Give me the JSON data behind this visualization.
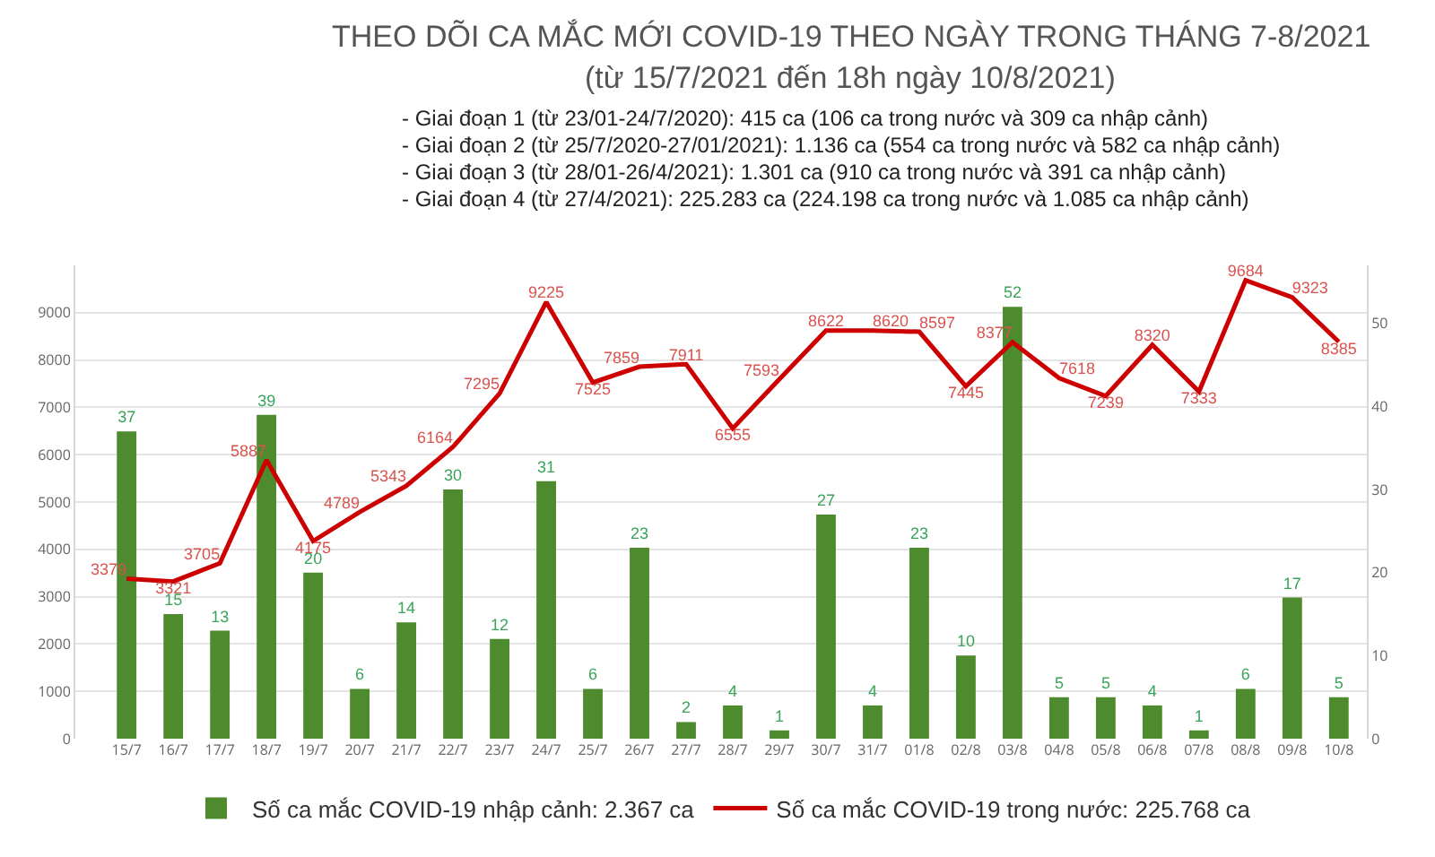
{
  "chart_data": {
    "type": "bar",
    "title": "THEO DÕI CA MẮC MỚI COVID-19 THEO NGÀY TRONG THÁNG 7-8/2021",
    "subtitle": "(từ 15/7/2021 đến 18h ngày 10/8/2021)",
    "annotations": [
      "- Giai đoạn 1 (từ 23/01-24/7/2020): 415 ca (106 ca trong nước và 309 ca nhập cảnh)",
      "- Giai đoạn 2 (từ 25/7/2020-27/01/2021): 1.136 ca (554 ca trong nước và 582 ca nhập cảnh)",
      "- Giai đoạn 3 (từ 28/01-26/4/2021): 1.301 ca (910 ca trong nước và 391 ca nhập cảnh)",
      "- Giai đoạn 4 (từ 27/4/2021): 225.283 ca (224.198 ca trong nước và 1.085 ca nhập cảnh)"
    ],
    "categories": [
      "15/7",
      "16/7",
      "17/7",
      "18/7",
      "19/7",
      "20/7",
      "21/7",
      "22/7",
      "23/7",
      "24/7",
      "25/7",
      "26/7",
      "27/7",
      "28/7",
      "29/7",
      "30/7",
      "31/7",
      "01/8",
      "02/8",
      "03/8",
      "04/8",
      "05/8",
      "06/8",
      "07/8",
      "08/8",
      "09/8",
      "10/8"
    ],
    "series": [
      {
        "name": "Số ca mắc COVID-19 nhập cảnh: 2.367 ca",
        "axis": "y2",
        "color": "#4e8a2e",
        "values": [
          37,
          15,
          13,
          39,
          20,
          6,
          14,
          30,
          12,
          31,
          6,
          23,
          2,
          4,
          1,
          27,
          4,
          23,
          10,
          52,
          5,
          5,
          4,
          1,
          6,
          17,
          5
        ]
      },
      {
        "name": "Số ca mắc COVID-19 trong nước: 225.768 ca",
        "type": "line",
        "axis": "y",
        "color": "#cc0000",
        "values": [
          3379,
          3321,
          3705,
          5887,
          4175,
          4789,
          5343,
          6164,
          7295,
          9225,
          7525,
          7859,
          7911,
          6555,
          7593,
          8622,
          8620,
          8597,
          7445,
          8377,
          7618,
          7239,
          8320,
          7333,
          9684,
          9323,
          8385
        ]
      }
    ],
    "ylim": [
      0,
      10000
    ],
    "yticks": [
      0,
      1000,
      2000,
      3000,
      4000,
      5000,
      6000,
      7000,
      8000,
      9000
    ],
    "y2lim": [
      0,
      57
    ],
    "y2ticks": [
      0,
      10,
      20,
      30,
      40,
      50
    ],
    "data_labels": true,
    "grid": "y",
    "legend": "bottom",
    "marker": "none",
    "line_style": "solid"
  }
}
